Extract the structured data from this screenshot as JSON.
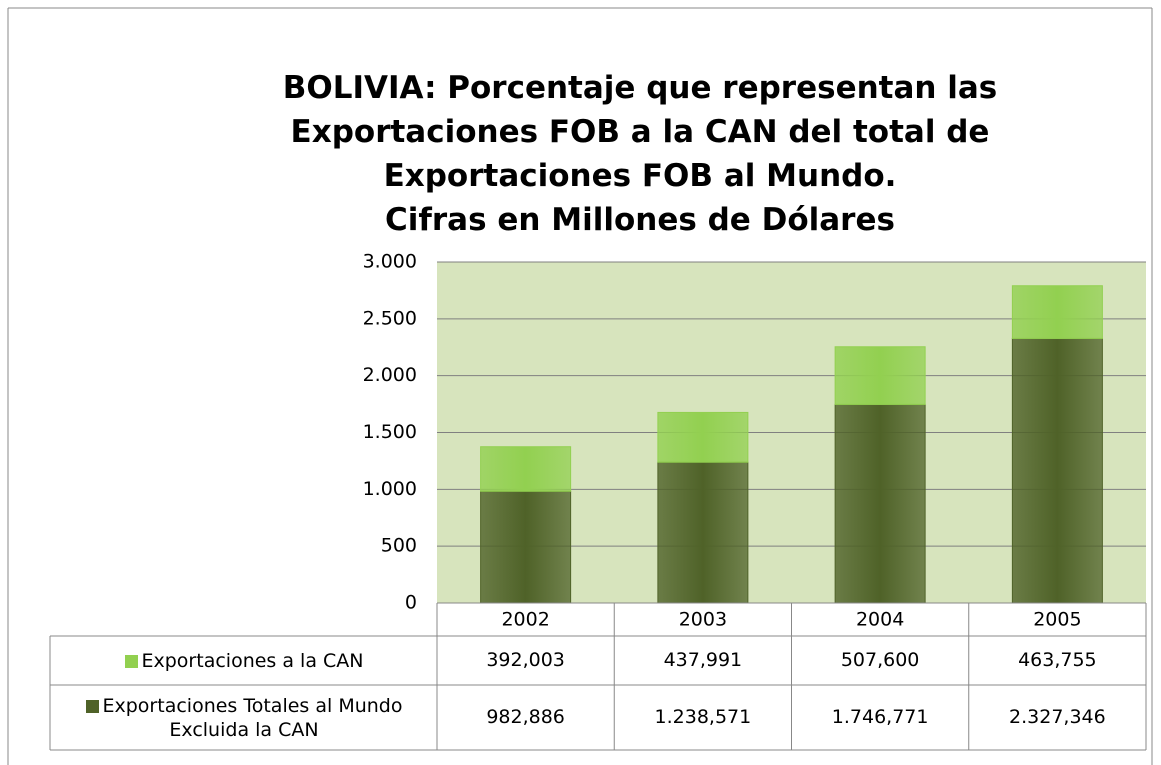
{
  "chart_data": {
    "type": "bar",
    "stacked": true,
    "title": "BOLIVIA: Porcentaje que representan las Exportaciones FOB a la CAN del total de  Exportaciones FOB al Mundo.",
    "subtitle": "Cifras en Millones de Dólares",
    "categories": [
      "2002",
      "2003",
      "2004",
      "2005"
    ],
    "series": [
      {
        "name": "Exportaciones a la CAN",
        "color": "#92d050",
        "values": [
          392.003,
          437.991,
          507.6,
          463.755
        ],
        "value_labels": [
          "392,003",
          "437,991",
          "507,600",
          "463,755"
        ]
      },
      {
        "name": "Exportaciones Totales al Mundo Excluida la CAN",
        "color": "#4f6228",
        "values": [
          982.886,
          1238.571,
          1746.771,
          2327.346
        ],
        "value_labels": [
          "982,886",
          "1.238,571",
          "1.746,771",
          "2.327,346"
        ]
      }
    ],
    "ylim": [
      0,
      3000
    ],
    "yticks": [
      0,
      500,
      {
        "value": 1000,
        "label": "1.000"
      },
      {
        "value": 1500,
        "label": "1.500"
      },
      {
        "value": 2000,
        "label": "2.000"
      },
      {
        "value": 2500,
        "label": "2.500"
      },
      {
        "value": 3000,
        "label": "3.000"
      }
    ],
    "grid": true,
    "plot_background": "#d7e4bd"
  }
}
